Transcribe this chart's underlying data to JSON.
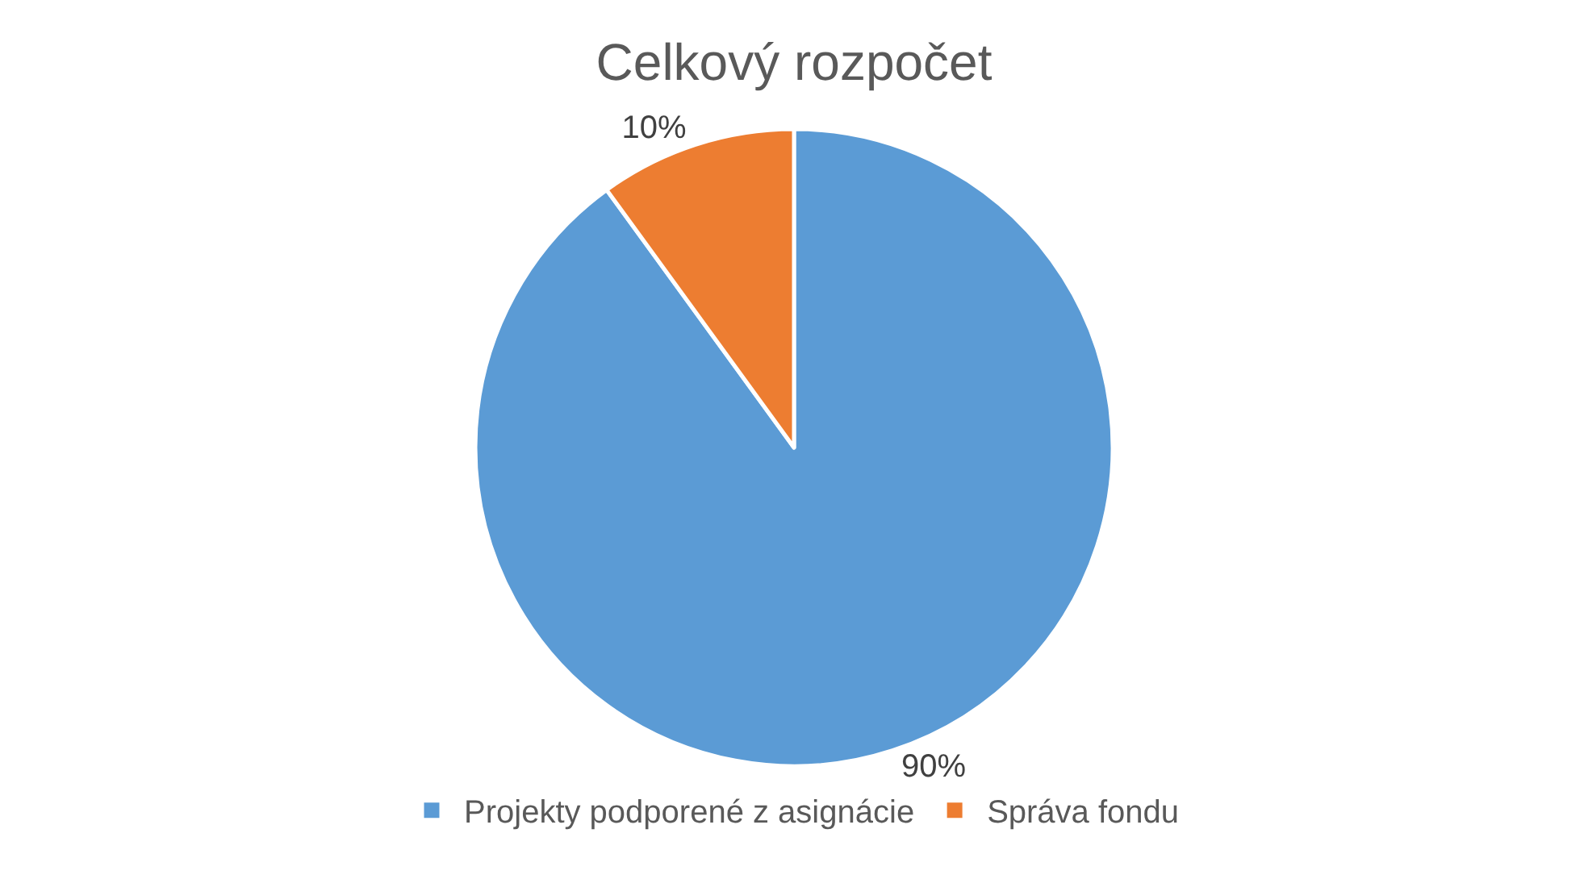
{
  "chart_data": {
    "type": "pie",
    "title": "Celkový rozpočet",
    "categories": [
      "Projekty podporené z asignácie",
      "Správa fondu"
    ],
    "values": [
      90,
      10
    ],
    "colors": [
      "#5b9bd5",
      "#ed7d31"
    ],
    "value_labels": [
      "90%",
      "10%"
    ],
    "legend": "bottom"
  }
}
